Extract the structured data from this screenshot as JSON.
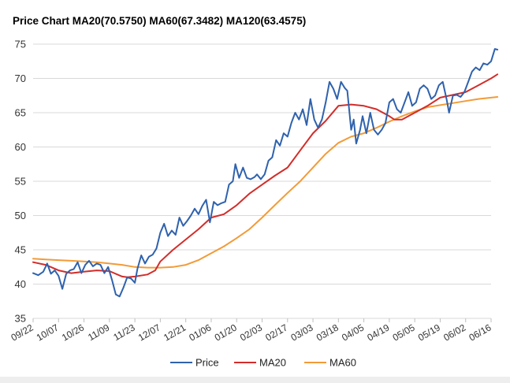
{
  "chart_data": {
    "type": "line",
    "title": "Price Chart MA20(70.5750) MA60(67.3482) MA120(63.4575)",
    "xlabel": "",
    "ylabel": "",
    "ylim": [
      35,
      75
    ],
    "yticks": [
      35,
      40,
      45,
      50,
      55,
      60,
      65,
      70,
      75
    ],
    "x_tick_labels": [
      "09/22",
      "10/07",
      "10/26",
      "11/09",
      "11/23",
      "12/07",
      "12/21",
      "01/06",
      "01/20",
      "02/03",
      "02/17",
      "03/03",
      "03/18",
      "04/05",
      "04/19",
      "05/05",
      "05/19",
      "06/02",
      "06/16"
    ],
    "grid": true,
    "legend_position": "bottom",
    "colors": {
      "Price": "#2f62ad",
      "MA20": "#d22d2a",
      "MA60": "#f29b38"
    },
    "series": [
      {
        "name": "Price",
        "points": [
          [
            0,
            41.6
          ],
          [
            0.2,
            41.3
          ],
          [
            0.4,
            41.8
          ],
          [
            0.55,
            43.0
          ],
          [
            0.7,
            41.5
          ],
          [
            0.85,
            42.0
          ],
          [
            1.0,
            41.2
          ],
          [
            1.15,
            39.3
          ],
          [
            1.3,
            41.5
          ],
          [
            1.45,
            42.0
          ],
          [
            1.6,
            42.2
          ],
          [
            1.75,
            43.2
          ],
          [
            1.9,
            41.6
          ],
          [
            2.05,
            42.8
          ],
          [
            2.2,
            43.4
          ],
          [
            2.35,
            42.6
          ],
          [
            2.5,
            43.0
          ],
          [
            2.65,
            42.8
          ],
          [
            2.8,
            41.6
          ],
          [
            2.95,
            42.5
          ],
          [
            3.1,
            40.6
          ],
          [
            3.25,
            38.5
          ],
          [
            3.4,
            38.2
          ],
          [
            3.55,
            39.5
          ],
          [
            3.7,
            41.0
          ],
          [
            3.85,
            40.8
          ],
          [
            4.0,
            40.2
          ],
          [
            4.1,
            42.2
          ],
          [
            4.25,
            44.2
          ],
          [
            4.4,
            43.0
          ],
          [
            4.55,
            44.0
          ],
          [
            4.7,
            44.3
          ],
          [
            4.85,
            45.2
          ],
          [
            5.0,
            47.5
          ],
          [
            5.15,
            48.8
          ],
          [
            5.3,
            47.0
          ],
          [
            5.45,
            47.8
          ],
          [
            5.6,
            47.2
          ],
          [
            5.75,
            49.7
          ],
          [
            5.9,
            48.5
          ],
          [
            6.05,
            49.2
          ],
          [
            6.2,
            50.0
          ],
          [
            6.35,
            51.0
          ],
          [
            6.5,
            50.2
          ],
          [
            6.65,
            51.4
          ],
          [
            6.8,
            52.3
          ],
          [
            6.95,
            49.0
          ],
          [
            7.1,
            52.0
          ],
          [
            7.25,
            51.5
          ],
          [
            7.4,
            51.8
          ],
          [
            7.55,
            52.0
          ],
          [
            7.7,
            54.5
          ],
          [
            7.85,
            55.0
          ],
          [
            7.95,
            57.5
          ],
          [
            8.1,
            55.5
          ],
          [
            8.25,
            57.0
          ],
          [
            8.4,
            55.5
          ],
          [
            8.55,
            55.3
          ],
          [
            8.7,
            55.6
          ],
          [
            8.8,
            56.0
          ],
          [
            8.95,
            55.3
          ],
          [
            9.1,
            56.0
          ],
          [
            9.25,
            58.0
          ],
          [
            9.4,
            58.5
          ],
          [
            9.55,
            61.0
          ],
          [
            9.7,
            60.2
          ],
          [
            9.85,
            62.0
          ],
          [
            10.0,
            61.5
          ],
          [
            10.15,
            63.5
          ],
          [
            10.3,
            65.0
          ],
          [
            10.45,
            64.0
          ],
          [
            10.6,
            65.5
          ],
          [
            10.75,
            63.2
          ],
          [
            10.9,
            67.0
          ],
          [
            11.05,
            64.0
          ],
          [
            11.2,
            62.8
          ],
          [
            11.35,
            64.0
          ],
          [
            11.5,
            66.5
          ],
          [
            11.65,
            69.5
          ],
          [
            11.8,
            68.5
          ],
          [
            11.95,
            67.0
          ],
          [
            12.1,
            69.5
          ],
          [
            12.25,
            68.6
          ],
          [
            12.35,
            68.2
          ],
          [
            12.5,
            62.5
          ],
          [
            12.6,
            64.0
          ],
          [
            12.7,
            60.5
          ],
          [
            12.85,
            62.5
          ],
          [
            12.95,
            64.5
          ],
          [
            13.1,
            62.0
          ],
          [
            13.25,
            65.0
          ],
          [
            13.4,
            62.5
          ],
          [
            13.55,
            61.8
          ],
          [
            13.7,
            62.5
          ],
          [
            13.85,
            63.5
          ],
          [
            14.0,
            66.5
          ],
          [
            14.15,
            67.0
          ],
          [
            14.3,
            65.5
          ],
          [
            14.45,
            65.0
          ],
          [
            14.6,
            66.5
          ],
          [
            14.75,
            68.0
          ],
          [
            14.9,
            66.0
          ],
          [
            15.05,
            66.5
          ],
          [
            15.2,
            68.5
          ],
          [
            15.35,
            69.0
          ],
          [
            15.5,
            68.5
          ],
          [
            15.65,
            67.0
          ],
          [
            15.8,
            67.5
          ],
          [
            15.95,
            69.0
          ],
          [
            16.1,
            69.5
          ],
          [
            16.25,
            67.0
          ],
          [
            16.35,
            65.0
          ],
          [
            16.5,
            67.5
          ],
          [
            16.65,
            67.6
          ],
          [
            16.8,
            67.3
          ],
          [
            16.95,
            68.0
          ],
          [
            17.1,
            69.5
          ],
          [
            17.25,
            71.0
          ],
          [
            17.4,
            71.6
          ],
          [
            17.55,
            71.2
          ],
          [
            17.7,
            72.2
          ],
          [
            17.85,
            72.0
          ],
          [
            18.0,
            72.5
          ],
          [
            18.15,
            74.3
          ],
          [
            18.25,
            74.2
          ]
        ]
      },
      {
        "name": "MA20",
        "points": [
          [
            0,
            43.2
          ],
          [
            0.5,
            42.8
          ],
          [
            1.0,
            42.0
          ],
          [
            1.5,
            41.6
          ],
          [
            2.0,
            41.8
          ],
          [
            2.5,
            42.0
          ],
          [
            3.0,
            41.9
          ],
          [
            3.5,
            41.1
          ],
          [
            3.7,
            41.0
          ],
          [
            4.0,
            41.1
          ],
          [
            4.5,
            41.4
          ],
          [
            4.8,
            42.0
          ],
          [
            5.0,
            43.3
          ],
          [
            5.5,
            45.0
          ],
          [
            6.0,
            46.5
          ],
          [
            6.5,
            48.0
          ],
          [
            7.0,
            49.7
          ],
          [
            7.5,
            50.2
          ],
          [
            8.0,
            51.5
          ],
          [
            8.5,
            53.2
          ],
          [
            9.0,
            54.5
          ],
          [
            9.5,
            55.8
          ],
          [
            10.0,
            57.0
          ],
          [
            10.5,
            59.5
          ],
          [
            11.0,
            62.0
          ],
          [
            11.5,
            63.8
          ],
          [
            12.0,
            66.0
          ],
          [
            12.5,
            66.2
          ],
          [
            13.0,
            66.0
          ],
          [
            13.5,
            65.5
          ],
          [
            14.0,
            64.5
          ],
          [
            14.2,
            64.0
          ],
          [
            14.5,
            64.0
          ],
          [
            15.0,
            65.0
          ],
          [
            15.5,
            66.0
          ],
          [
            16.0,
            67.2
          ],
          [
            16.5,
            67.6
          ],
          [
            17.0,
            68.0
          ],
          [
            17.5,
            69.0
          ],
          [
            18.0,
            70.0
          ],
          [
            18.25,
            70.6
          ]
        ]
      },
      {
        "name": "MA60",
        "points": [
          [
            0,
            43.7
          ],
          [
            0.5,
            43.6
          ],
          [
            1.0,
            43.5
          ],
          [
            1.5,
            43.4
          ],
          [
            2.0,
            43.3
          ],
          [
            2.5,
            43.2
          ],
          [
            3.0,
            43.0
          ],
          [
            3.5,
            42.8
          ],
          [
            4.0,
            42.5
          ],
          [
            4.5,
            42.4
          ],
          [
            5.0,
            42.4
          ],
          [
            5.5,
            42.5
          ],
          [
            6.0,
            42.8
          ],
          [
            6.5,
            43.5
          ],
          [
            7.0,
            44.5
          ],
          [
            7.5,
            45.5
          ],
          [
            8.0,
            46.7
          ],
          [
            8.5,
            48.0
          ],
          [
            9.0,
            49.7
          ],
          [
            9.5,
            51.5
          ],
          [
            10.0,
            53.3
          ],
          [
            10.5,
            55.0
          ],
          [
            11.0,
            57.0
          ],
          [
            11.5,
            59.0
          ],
          [
            12.0,
            60.6
          ],
          [
            12.5,
            61.5
          ],
          [
            13.0,
            62.0
          ],
          [
            13.5,
            62.8
          ],
          [
            14.0,
            63.7
          ],
          [
            14.5,
            64.5
          ],
          [
            15.0,
            65.2
          ],
          [
            15.5,
            65.8
          ],
          [
            16.0,
            66.1
          ],
          [
            16.5,
            66.4
          ],
          [
            17.0,
            66.7
          ],
          [
            17.5,
            67.0
          ],
          [
            18.0,
            67.2
          ],
          [
            18.25,
            67.3
          ]
        ]
      }
    ]
  }
}
